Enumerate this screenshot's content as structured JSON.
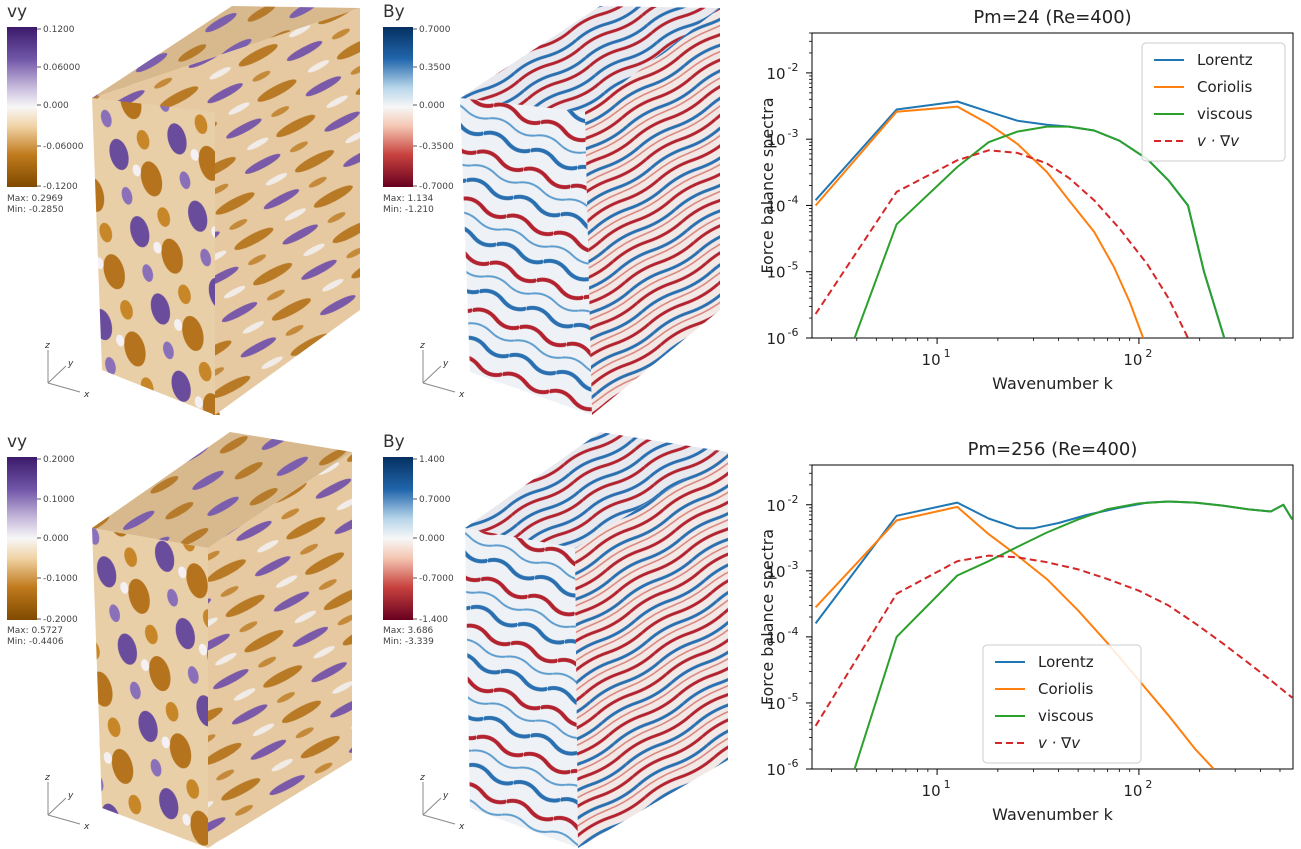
{
  "colors": {
    "lorentz": "#1f77b4",
    "coriolis": "#ff7f0e",
    "viscous": "#2ca02c",
    "advection": "#d62728",
    "vy_colormap": [
      "#7f5a00",
      "#c07a1c",
      "#e9b36a",
      "#f6e2c4",
      "#f7f7f7",
      "#ddd5ea",
      "#a994c8",
      "#7156a8",
      "#3b1a6b"
    ],
    "by_colormap": [
      "#67001f",
      "#b2182b",
      "#e0877d",
      "#f9dfd2",
      "#f7f7f7",
      "#d1e5f0",
      "#7fb4d6",
      "#2166ac",
      "#053061"
    ]
  },
  "panels": [
    {
      "row": "top",
      "vy": {
        "title": "vy",
        "colormap": "purple-orange",
        "ticks": [
          "0.1200",
          "0.06000",
          "0.000",
          "-0.06000",
          "-0.1200"
        ],
        "max": "Max:  0.2969",
        "min": "Min:  -0.2850",
        "triad": [
          "z",
          "y",
          "x"
        ]
      },
      "by": {
        "title": "By",
        "colormap": "blue-red",
        "ticks": [
          "0.7000",
          "0.3500",
          "0.000",
          "-0.3500",
          "-0.7000"
        ],
        "max": "Max:  1.134",
        "min": "Min:  -1.210",
        "triad": [
          "z",
          "y",
          "x"
        ]
      }
    },
    {
      "row": "bottom",
      "vy": {
        "title": "vy",
        "colormap": "purple-orange",
        "ticks": [
          "0.2000",
          "0.1000",
          "0.000",
          "-0.1000",
          "-0.2000"
        ],
        "max": "Max:  0.5727",
        "min": "Min:  -0.4406",
        "triad": [
          "z",
          "y",
          "x"
        ]
      },
      "by": {
        "title": "By",
        "colormap": "blue-red",
        "ticks": [
          "1.400",
          "0.7000",
          "0.000",
          "-0.7000",
          "-1.400"
        ],
        "max": "Max:  3.686",
        "min": "Min:  -3.339",
        "triad": [
          "z",
          "y",
          "x"
        ]
      }
    }
  ],
  "chart_data": [
    {
      "type": "line",
      "title": "Pm=24 (Re=400)",
      "xlabel": "Wavenumber k",
      "ylabel": "Force balance spectra",
      "xscale": "log",
      "yscale": "log",
      "xlim": [
        2.4,
        580
      ],
      "ylim": [
        1e-06,
        0.04
      ],
      "xticks": [
        {
          "base": "10",
          "exp": "1",
          "value": 10
        },
        {
          "base": "10",
          "exp": "2",
          "value": 100
        }
      ],
      "yticks": [
        {
          "base": "10",
          "exp": "-6",
          "value": 1e-06
        },
        {
          "base": "10",
          "exp": "-5",
          "value": 1e-05
        },
        {
          "base": "10",
          "exp": "-4",
          "value": 0.0001
        },
        {
          "base": "10",
          "exp": "-3",
          "value": 0.001
        },
        {
          "base": "10",
          "exp": "-2",
          "value": 0.01
        }
      ],
      "legend_position": "top-right",
      "series": [
        {
          "name": "Lorentz",
          "color": "#1f77b4",
          "dash": "solid",
          "points": [
            [
              2.5,
              0.00012
            ],
            [
              6.3,
              0.0028
            ],
            [
              12.6,
              0.0037
            ],
            [
              18,
              0.0026
            ],
            [
              25,
              0.0019
            ],
            [
              35,
              0.00165
            ],
            [
              45,
              0.00155
            ],
            [
              60,
              0.00135
            ],
            [
              80,
              0.00095
            ],
            [
              110,
              0.0005
            ],
            [
              140,
              0.00024
            ],
            [
              175,
              0.0001
            ],
            [
              210,
              1e-05
            ],
            [
              265,
              1e-06
            ]
          ]
        },
        {
          "name": "Coriolis",
          "color": "#ff7f0e",
          "dash": "solid",
          "points": [
            [
              2.5,
              0.0001
            ],
            [
              6.3,
              0.0026
            ],
            [
              12.6,
              0.0031
            ],
            [
              18,
              0.0017
            ],
            [
              25,
              0.00085
            ],
            [
              35,
              0.00032
            ],
            [
              45,
              0.00012
            ],
            [
              60,
              4e-05
            ],
            [
              75,
              1.2e-05
            ],
            [
              90,
              3.5e-06
            ],
            [
              105,
              1e-06
            ]
          ]
        },
        {
          "name": "viscous",
          "color": "#2ca02c",
          "dash": "solid",
          "points": [
            [
              3.9,
              1e-06
            ],
            [
              6.3,
              5.2e-05
            ],
            [
              12.6,
              0.00038
            ],
            [
              18,
              0.0009
            ],
            [
              25,
              0.0013
            ],
            [
              35,
              0.00155
            ],
            [
              45,
              0.00155
            ],
            [
              60,
              0.00135
            ],
            [
              80,
              0.00095
            ],
            [
              110,
              0.0005
            ],
            [
              140,
              0.00024
            ],
            [
              175,
              0.0001
            ],
            [
              210,
              1e-05
            ],
            [
              265,
              1e-06
            ]
          ]
        },
        {
          "name": "v · ∇v",
          "color": "#d62728",
          "dash": "dashed",
          "points": [
            [
              2.5,
              2.3e-06
            ],
            [
              6.3,
              0.00016
            ],
            [
              12.6,
              0.00048
            ],
            [
              18,
              0.00068
            ],
            [
              25,
              0.00062
            ],
            [
              35,
              0.00043
            ],
            [
              45,
              0.00026
            ],
            [
              60,
              0.00012
            ],
            [
              80,
              4.5e-05
            ],
            [
              110,
              1.3e-05
            ],
            [
              140,
              4e-06
            ],
            [
              175,
              1e-06
            ]
          ]
        }
      ]
    },
    {
      "type": "line",
      "title": "Pm=256 (Re=400)",
      "xlabel": "Wavenumber k",
      "ylabel": "Force balance spectra",
      "xscale": "log",
      "yscale": "log",
      "xlim": [
        2.4,
        580
      ],
      "ylim": [
        1e-06,
        0.04
      ],
      "xticks": [
        {
          "base": "10",
          "exp": "1",
          "value": 10
        },
        {
          "base": "10",
          "exp": "2",
          "value": 100
        }
      ],
      "yticks": [
        {
          "base": "10",
          "exp": "-6",
          "value": 1e-06
        },
        {
          "base": "10",
          "exp": "-5",
          "value": 1e-05
        },
        {
          "base": "10",
          "exp": "-4",
          "value": 0.0001
        },
        {
          "base": "10",
          "exp": "-3",
          "value": 0.001
        },
        {
          "base": "10",
          "exp": "-2",
          "value": 0.01
        }
      ],
      "legend_position": "bottom-center",
      "series": [
        {
          "name": "Lorentz",
          "color": "#1f77b4",
          "dash": "solid",
          "points": [
            [
              2.5,
              0.00016
            ],
            [
              6.3,
              0.0068
            ],
            [
              12.6,
              0.0108
            ],
            [
              18,
              0.0062
            ],
            [
              25,
              0.0044
            ],
            [
              30,
              0.0044
            ],
            [
              40,
              0.0053
            ],
            [
              55,
              0.007
            ],
            [
              80,
              0.009
            ],
            [
              110,
              0.0108
            ],
            [
              140,
              0.0112
            ],
            [
              190,
              0.0108
            ],
            [
              260,
              0.0097
            ],
            [
              350,
              0.0085
            ],
            [
              450,
              0.0079
            ],
            [
              520,
              0.01
            ],
            [
              575,
              0.006
            ]
          ]
        },
        {
          "name": "Coriolis",
          "color": "#ff7f0e",
          "dash": "solid",
          "points": [
            [
              2.5,
              0.00028
            ],
            [
              6.3,
              0.0058
            ],
            [
              12.6,
              0.0093
            ],
            [
              18,
              0.0036
            ],
            [
              25,
              0.0017
            ],
            [
              35,
              0.00075
            ],
            [
              50,
              0.00025
            ],
            [
              70,
              8e-05
            ],
            [
              100,
              2.2e-05
            ],
            [
              140,
              6.5e-06
            ],
            [
              190,
              2e-06
            ],
            [
              235,
              1e-06
            ]
          ]
        },
        {
          "name": "viscous",
          "color": "#2ca02c",
          "dash": "solid",
          "points": [
            [
              3.9,
              1e-06
            ],
            [
              6.3,
              0.0001
            ],
            [
              12.6,
              0.00085
            ],
            [
              18,
              0.0014
            ],
            [
              25,
              0.0023
            ],
            [
              35,
              0.0038
            ],
            [
              50,
              0.006
            ],
            [
              70,
              0.0086
            ],
            [
              100,
              0.0105
            ],
            [
              140,
              0.0112
            ],
            [
              190,
              0.0108
            ],
            [
              260,
              0.0097
            ],
            [
              350,
              0.0085
            ],
            [
              450,
              0.0079
            ],
            [
              520,
              0.01
            ],
            [
              575,
              0.006
            ]
          ]
        },
        {
          "name": "v · ∇v",
          "color": "#d62728",
          "dash": "dashed",
          "points": [
            [
              2.5,
              4.5e-06
            ],
            [
              6.3,
              0.00045
            ],
            [
              12.6,
              0.0014
            ],
            [
              18,
              0.0017
            ],
            [
              25,
              0.0016
            ],
            [
              35,
              0.00135
            ],
            [
              50,
              0.00105
            ],
            [
              70,
              0.00075
            ],
            [
              100,
              0.0005
            ],
            [
              140,
              0.0003
            ],
            [
              190,
              0.00016
            ],
            [
              260,
              8e-05
            ],
            [
              350,
              4e-05
            ],
            [
              450,
              2.2e-05
            ],
            [
              575,
              1.2e-05
            ]
          ]
        }
      ]
    }
  ]
}
